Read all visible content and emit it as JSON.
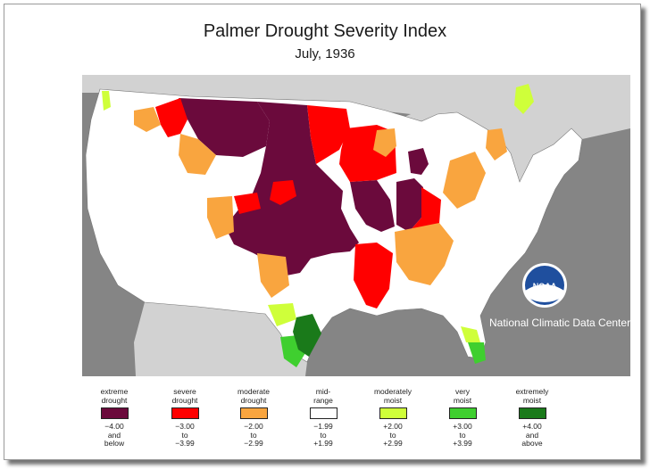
{
  "title": "Palmer Drought Severity Index",
  "subtitle": "July, 1936",
  "organization": "National Climatic Data Center",
  "logo_text": "NOAA",
  "colors": {
    "extreme_drought": "#6b0a3c",
    "severe_drought": "#ff0000",
    "moderate_drought": "#f9a53f",
    "mid_range": "#ffffff",
    "moderately_moist": "#cfff3a",
    "very_moist": "#3fcf2f",
    "extremely_moist": "#1a7a1a",
    "background_gray": "#858585",
    "land_outside": "#d2d2d2"
  },
  "legend": [
    {
      "label_line1": "extreme",
      "label_line2": "drought",
      "range_line1": "−4.00",
      "range_line2": "and",
      "range_line3": "below",
      "color": "#6b0a3c"
    },
    {
      "label_line1": "severe",
      "label_line2": "drought",
      "range_line1": "−3.00",
      "range_line2": "to",
      "range_line3": "−3.99",
      "color": "#ff0000"
    },
    {
      "label_line1": "moderate",
      "label_line2": "drought",
      "range_line1": "−2.00",
      "range_line2": "to",
      "range_line3": "−2.99",
      "color": "#f9a53f"
    },
    {
      "label_line1": "mid-",
      "label_line2": "range",
      "range_line1": "−1.99",
      "range_line2": "to",
      "range_line3": "+1.99",
      "color": "#ffffff"
    },
    {
      "label_line1": "moderately",
      "label_line2": "moist",
      "range_line1": "+2.00",
      "range_line2": "to",
      "range_line3": "+2.99",
      "color": "#cfff3a"
    },
    {
      "label_line1": "very",
      "label_line2": "moist",
      "range_line1": "+3.00",
      "range_line2": "to",
      "range_line3": "+3.99",
      "color": "#3fcf2f"
    },
    {
      "label_line1": "extremely",
      "label_line2": "moist",
      "range_line1": "+4.00",
      "range_line2": "and",
      "range_line3": "above",
      "color": "#1a7a1a"
    }
  ]
}
